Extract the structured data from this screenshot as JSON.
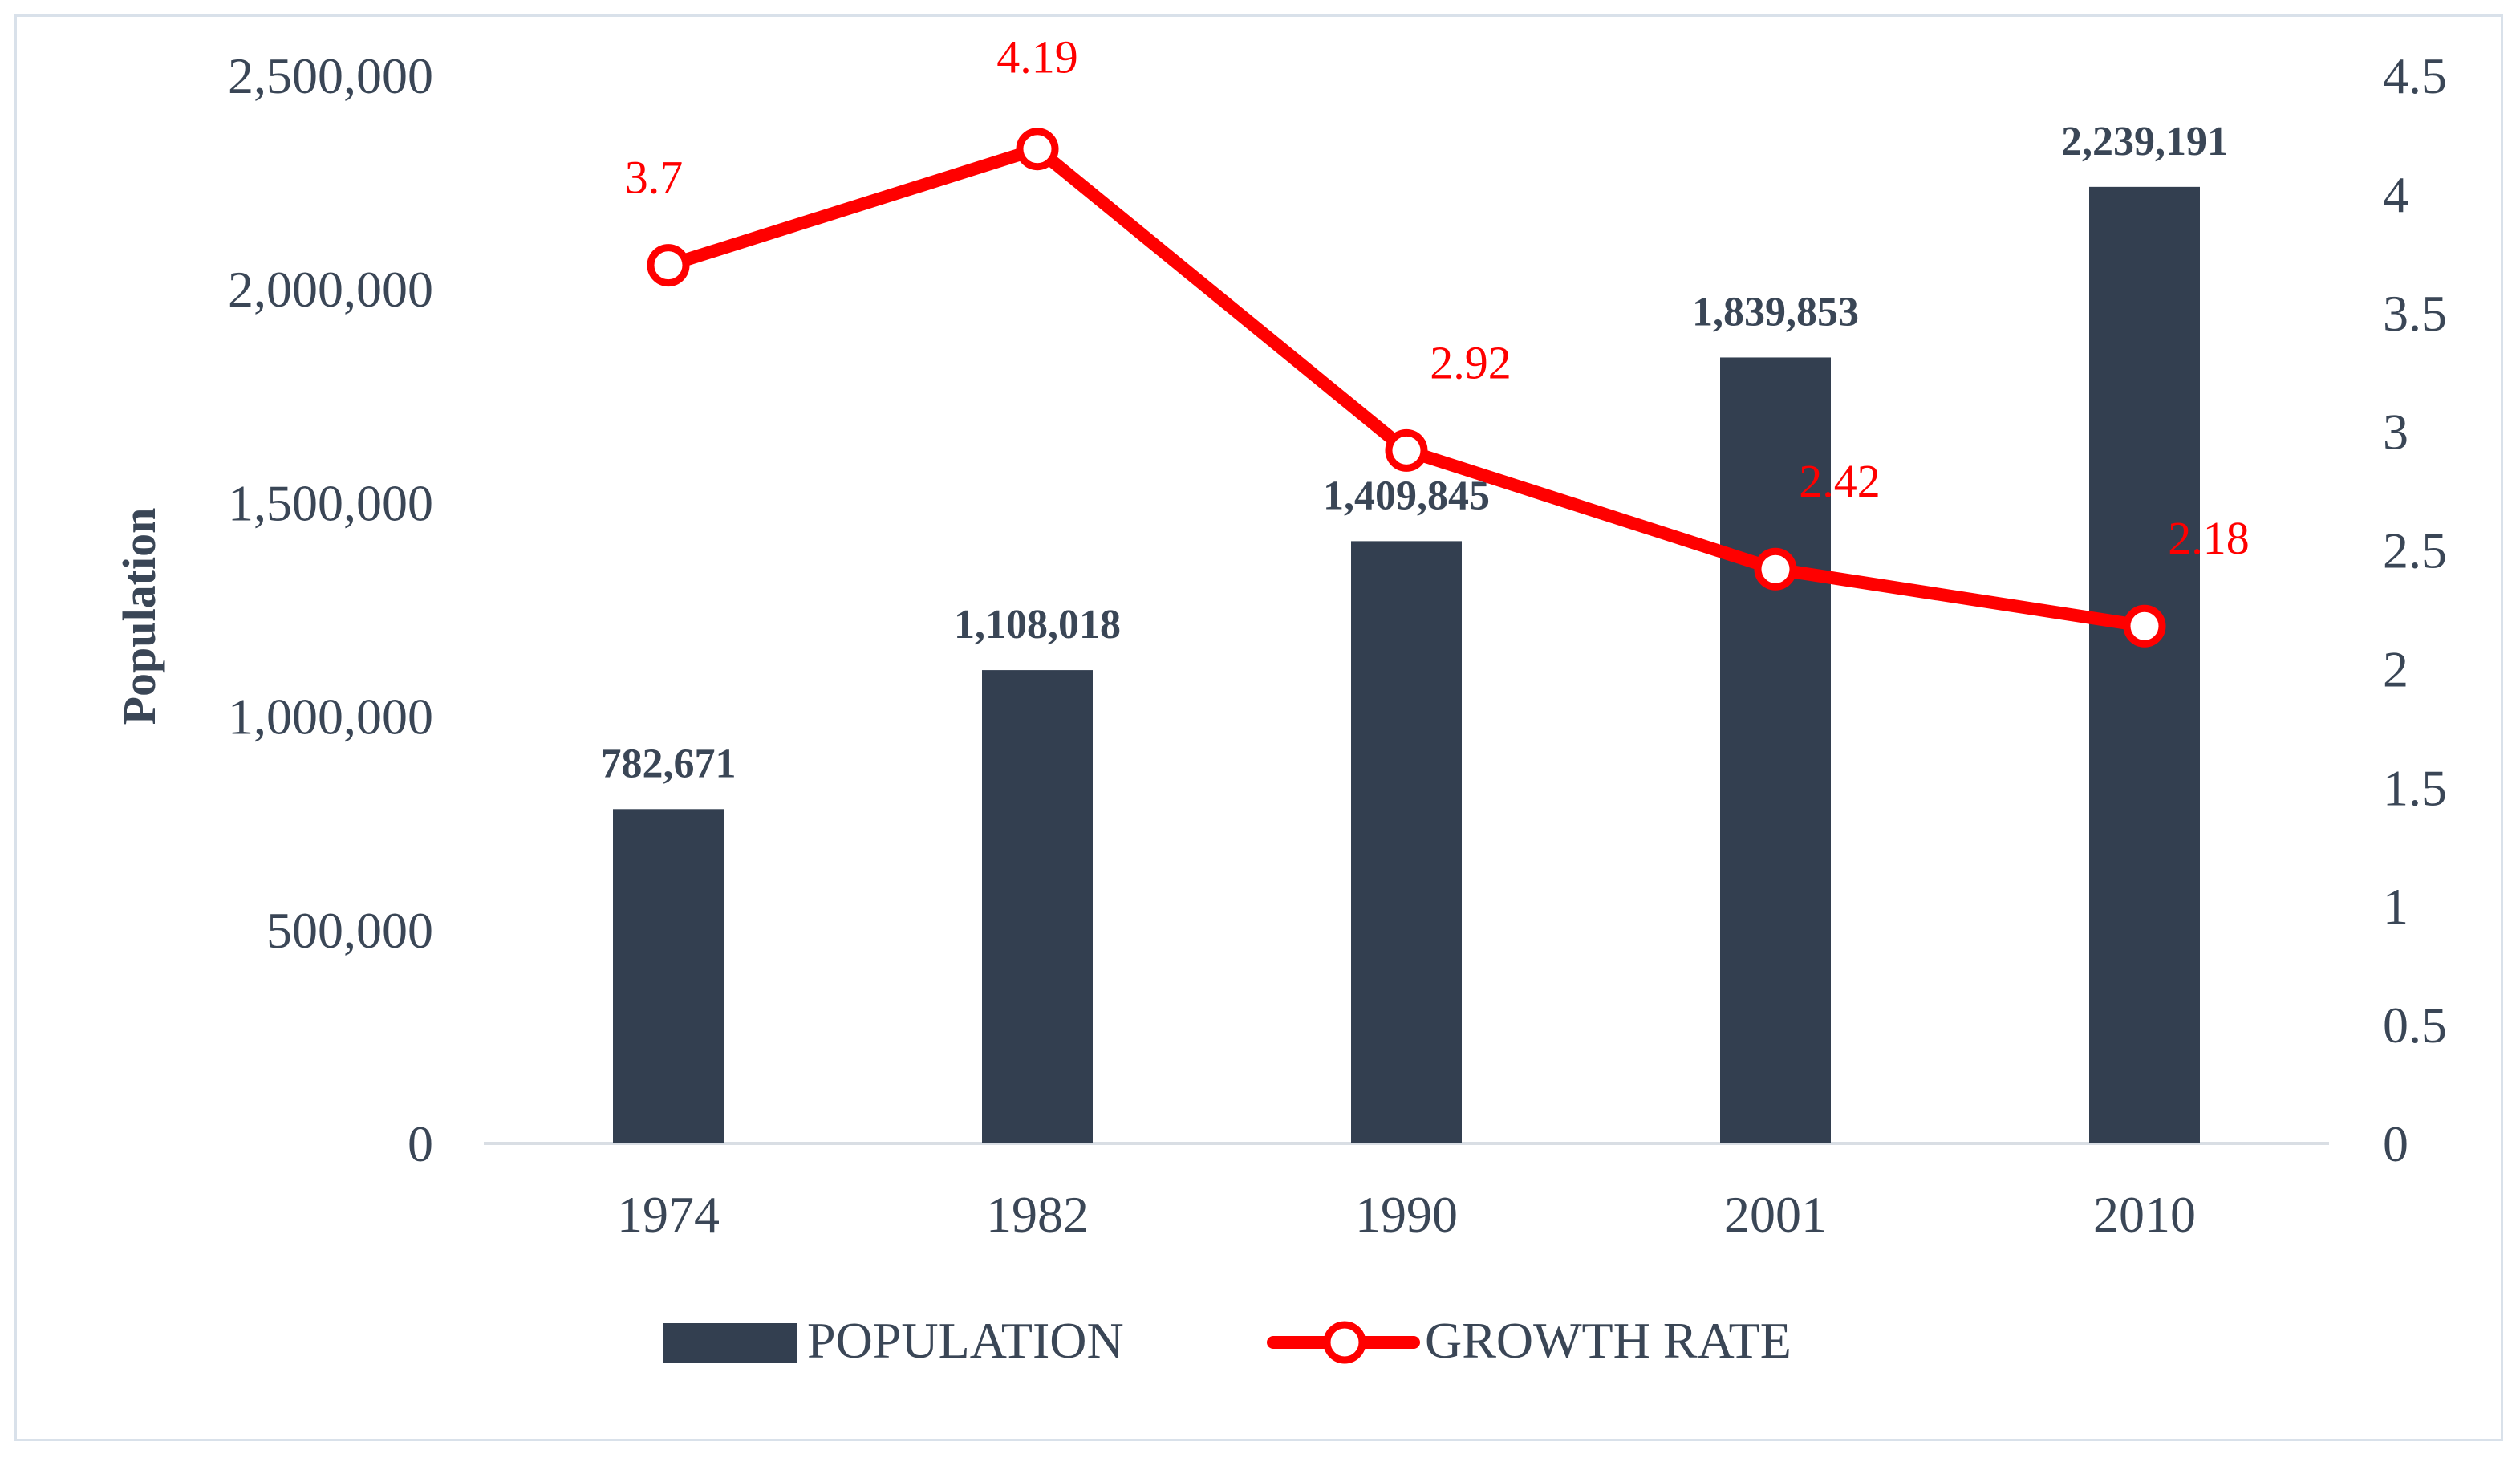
{
  "chart_data": {
    "type": "bar+line",
    "categories": [
      "1974",
      "1982",
      "1990",
      "2001",
      "2010"
    ],
    "series": [
      {
        "name": "POPULATION",
        "type": "bar",
        "axis": "left",
        "values": [
          782671,
          1108018,
          1409845,
          1839853,
          2239191
        ],
        "labels": [
          "782,671",
          "1,108,018",
          "1,409,845",
          "1,839,853",
          "2,239,191"
        ],
        "color": "#333f50"
      },
      {
        "name": "GROWTH RATE",
        "type": "line",
        "axis": "right",
        "values": [
          3.7,
          4.19,
          2.92,
          2.42,
          2.18
        ],
        "labels": [
          "3.7",
          "4.19",
          "2.92",
          "2.42",
          "2.18"
        ],
        "color": "#ff0000"
      }
    ],
    "ylabel": "Population",
    "y_left": {
      "range": [
        0,
        2500000
      ],
      "ticks": [
        "0",
        "500,000",
        "1,000,000",
        "1,500,000",
        "2,000,000",
        "2,500,000"
      ]
    },
    "y_right": {
      "range": [
        0,
        4.5
      ],
      "ticks": [
        "0",
        "0.5",
        "1",
        "1.5",
        "2",
        "2.5",
        "3",
        "3.5",
        "4",
        "4.5"
      ]
    },
    "grid": false,
    "legend": "bottom",
    "colors": {
      "axis_text": "#3a4656",
      "axis_line": "#d9dee4",
      "bar": "#333f50",
      "line": "#ff0000",
      "frame": "#d9e1ea"
    }
  }
}
